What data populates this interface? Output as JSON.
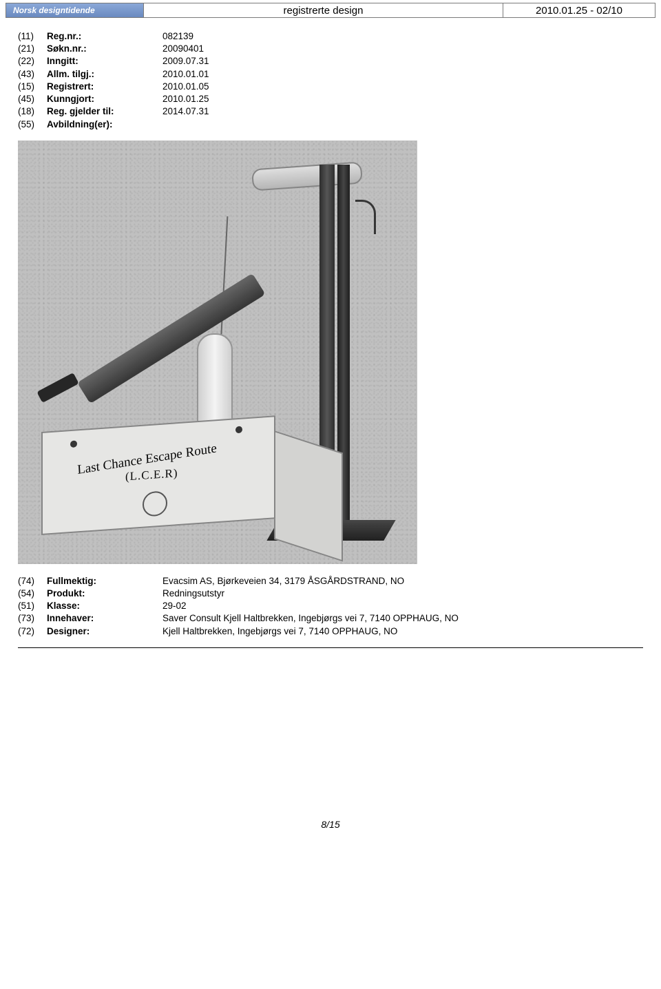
{
  "header": {
    "logo_text": "Norsk designtidende",
    "title": "registrerte design",
    "date_range": "2010.01.25 - 02/10"
  },
  "top_fields": [
    {
      "code": "(11)",
      "label": "Reg.nr.:",
      "value": "082139"
    },
    {
      "code": "(21)",
      "label": "Søkn.nr.:",
      "value": "20090401"
    },
    {
      "code": "(22)",
      "label": "Inngitt:",
      "value": "2009.07.31"
    },
    {
      "code": "(43)",
      "label": "Allm. tilgj.:",
      "value": "2010.01.01"
    },
    {
      "code": "(15)",
      "label": "Registrert:",
      "value": "2010.01.05"
    },
    {
      "code": "(45)",
      "label": "Kunngjort:",
      "value": "2010.01.25"
    },
    {
      "code": "(18)",
      "label": "Reg. gjelder til:",
      "value": "2014.07.31"
    },
    {
      "code": "(55)",
      "label": "Avbildning(er):",
      "value": ""
    }
  ],
  "illustration": {
    "box_text_line1": "Last Chance Escape Route",
    "box_text_line2": "(L.C.E.R)"
  },
  "bottom_fields": [
    {
      "code": "(74)",
      "label": "Fullmektig:",
      "value": "Evacsim AS, Bjørkeveien 34, 3179 ÅSGÅRDSTRAND, NO"
    },
    {
      "code": "(54)",
      "label": "Produkt:",
      "value": "Redningsutstyr"
    },
    {
      "code": "(51)",
      "label": "Klasse:",
      "value": "29-02"
    },
    {
      "code": "(73)",
      "label": "Innehaver:",
      "value": "Saver Consult Kjell Haltbrekken, Ingebjørgs vei 7, 7140 OPPHAUG, NO"
    },
    {
      "code": "(72)",
      "label": "Designer:",
      "value": "Kjell Haltbrekken, Ingebjørgs vei 7, 7140 OPPHAUG, NO"
    }
  ],
  "footer": {
    "page": "8/15"
  }
}
